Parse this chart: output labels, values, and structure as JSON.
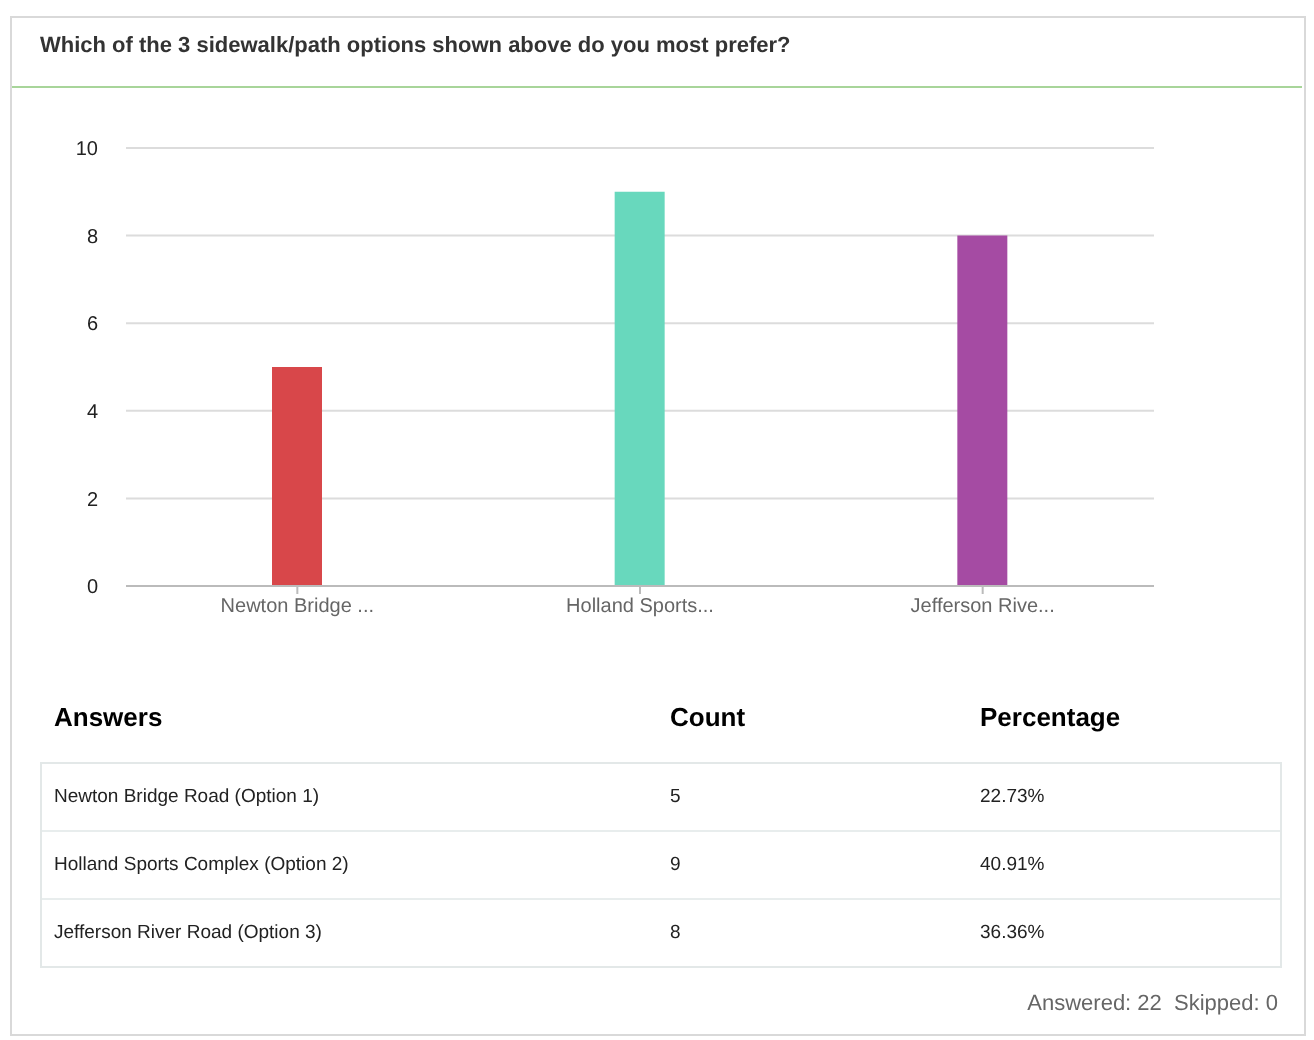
{
  "chart_data": {
    "type": "bar",
    "title": "Which of the 3 sidewalk/path options shown above do you most prefer?",
    "categories": [
      "Newton Bridge ...",
      "Holland Sports...",
      "Jefferson Rive..."
    ],
    "values": [
      5,
      9,
      8
    ],
    "colors": [
      "#d8474a",
      "#68d8bd",
      "#a54ba3"
    ],
    "ylim": [
      0,
      10
    ],
    "yticks": [
      0,
      2,
      4,
      6,
      8,
      10
    ],
    "grid": "y",
    "legend": false,
    "annotations": [
      "Answers",
      "Count",
      "Percentage",
      "Newton Bridge Road (Option 1)",
      "5",
      "22.73%",
      "Holland Sports Complex (Option 2)",
      "9",
      "40.91%",
      "Jefferson River Road (Option 3)",
      "8",
      "36.36%",
      "Answered: 22  Skipped: 0"
    ]
  }
}
